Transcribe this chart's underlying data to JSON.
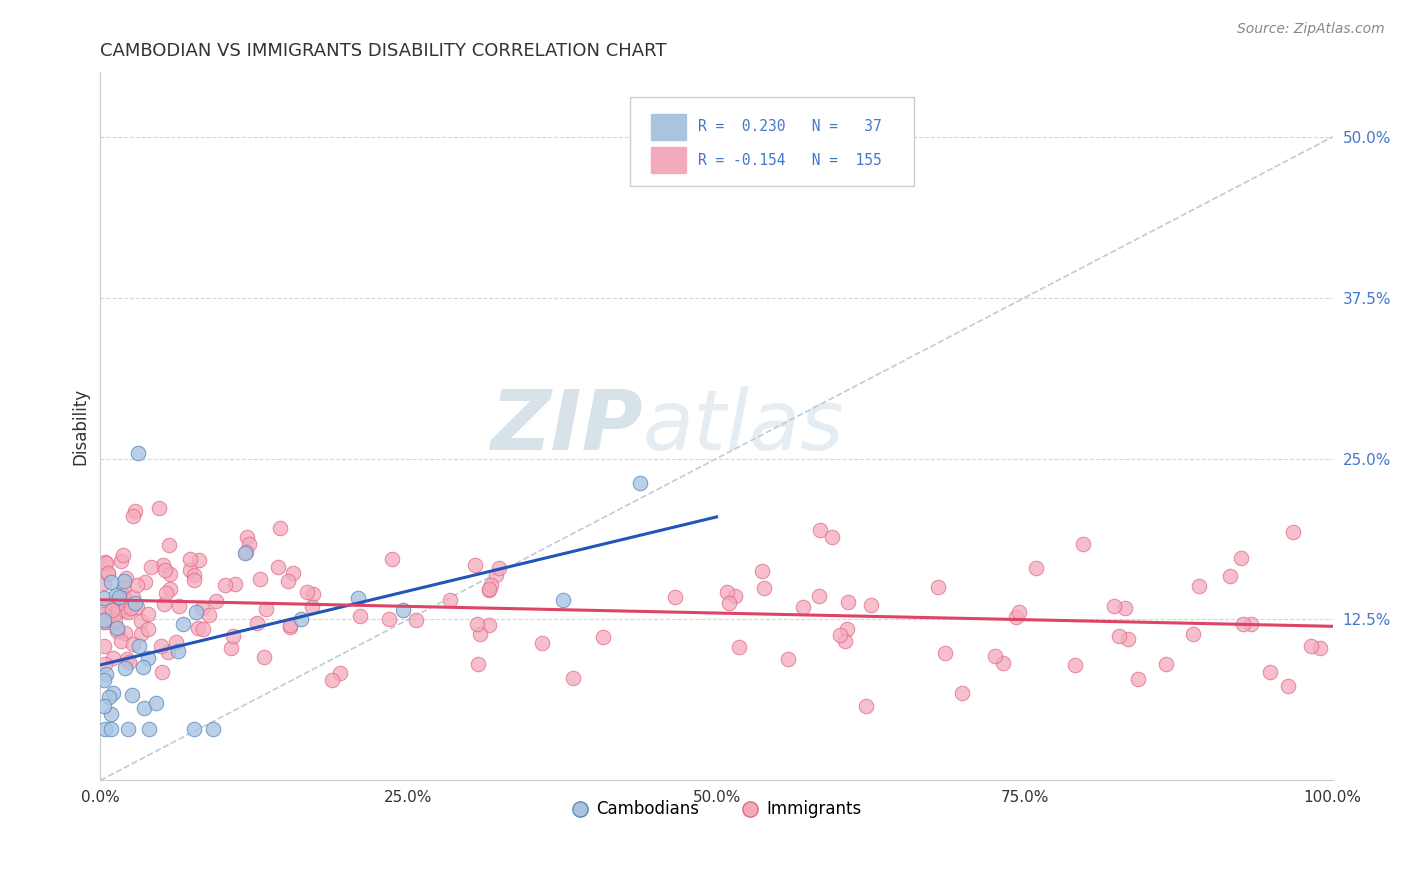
{
  "title": "CAMBODIAN VS IMMIGRANTS DISABILITY CORRELATION CHART",
  "source": "Source: ZipAtlas.com",
  "ylabel": "Disability",
  "xlim": [
    0.0,
    1.0
  ],
  "ylim": [
    0.0,
    0.55
  ],
  "xticks": [
    0.0,
    0.25,
    0.5,
    0.75,
    1.0
  ],
  "xticklabels": [
    "0.0%",
    "25.0%",
    "50.0%",
    "75.0%",
    "100.0%"
  ],
  "ytick_positions": [
    0.125,
    0.25,
    0.375,
    0.5
  ],
  "yticklabels": [
    "12.5%",
    "25.0%",
    "37.5%",
    "50.0%"
  ],
  "cambodian_fill": "#aac4e0",
  "cambodian_edge": "#5588bb",
  "immigrant_fill": "#f5aabb",
  "immigrant_edge": "#dd6688",
  "trend_cam_color": "#2255bb",
  "trend_imm_color": "#dd4466",
  "diag_color": "#bbccdd",
  "grid_color": "#cccccc",
  "background_color": "#ffffff",
  "ytick_color": "#4477cc",
  "watermark_color": "#ccdded",
  "source_color": "#888888",
  "title_color": "#333333",
  "legend_edge_color": "#cccccc",
  "legend_text_color": "#4477cc"
}
